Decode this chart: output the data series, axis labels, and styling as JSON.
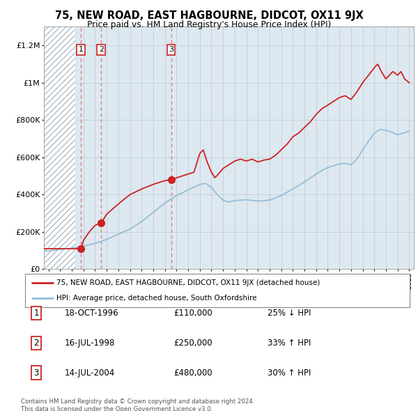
{
  "title": "75, NEW ROAD, EAST HAGBOURNE, DIDCOT, OX11 9JX",
  "subtitle": "Price paid vs. HM Land Registry's House Price Index (HPI)",
  "ylim": [
    0,
    1300000
  ],
  "yticks": [
    0,
    200000,
    400000,
    600000,
    800000,
    1000000,
    1200000
  ],
  "plot_bg_color": "#dde8f0",
  "hatch_color": "#b0bec8",
  "red_color": "#cc2222",
  "blue_color": "#90bcd8",
  "dashed_color": "#e06060",
  "legend_red": "75, NEW ROAD, EAST HAGBOURNE, DIDCOT, OX11 9JX (detached house)",
  "legend_blue": "HPI: Average price, detached house, South Oxfordshire",
  "sale_years": [
    1996.8,
    1998.54,
    2004.53
  ],
  "sale_prices": [
    110000,
    250000,
    480000
  ],
  "table_rows": [
    [
      "1",
      "18-OCT-1996",
      "£110,000",
      "25% ↓ HPI"
    ],
    [
      "2",
      "16-JUL-1998",
      "£250,000",
      "33% ↑ HPI"
    ],
    [
      "3",
      "14-JUL-2004",
      "£480,000",
      "30% ↑ HPI"
    ]
  ],
  "footnote_line1": "Contains HM Land Registry data © Crown copyright and database right 2024.",
  "footnote_line2": "This data is licensed under the Open Government Licence v3.0.",
  "xmin": 1993.6,
  "xmax": 2025.4,
  "hpi_knots_x": [
    1993.5,
    1994,
    1995,
    1996,
    1997,
    1998,
    1999,
    2000,
    2001,
    2002,
    2003,
    2004,
    2004.5,
    2005,
    2006,
    2007,
    2007.5,
    2008,
    2008.5,
    2009,
    2009.5,
    2010,
    2011,
    2012,
    2013,
    2014,
    2015,
    2016,
    2017,
    2017.5,
    2018,
    2018.5,
    2019,
    2019.5,
    2020,
    2020.5,
    2021,
    2021.5,
    2022,
    2022.5,
    2023,
    2023.5,
    2024,
    2024.5,
    2025
  ],
  "hpi_knots_y": [
    95000,
    98000,
    105000,
    113000,
    123000,
    138000,
    160000,
    188000,
    215000,
    255000,
    305000,
    355000,
    375000,
    395000,
    425000,
    455000,
    460000,
    440000,
    400000,
    370000,
    360000,
    368000,
    372000,
    365000,
    370000,
    395000,
    430000,
    468000,
    510000,
    530000,
    545000,
    555000,
    565000,
    568000,
    560000,
    590000,
    640000,
    685000,
    730000,
    750000,
    745000,
    735000,
    720000,
    730000,
    740000
  ],
  "red_knots_x": [
    1993.5,
    1994,
    1995,
    1996,
    1996.8,
    1997,
    1997.5,
    1998,
    1998.54,
    1999,
    2000,
    2001,
    2002,
    2003,
    2004,
    2004.53,
    2005,
    2005.5,
    2006,
    2006.5,
    2007,
    2007.3,
    2007.6,
    2008,
    2008.3,
    2008.6,
    2009,
    2009.5,
    2010,
    2010.5,
    2011,
    2011.5,
    2012,
    2012.5,
    2013,
    2013.5,
    2014,
    2014.5,
    2015,
    2015.5,
    2016,
    2016.5,
    2017,
    2017.5,
    2018,
    2018.5,
    2019,
    2019.5,
    2020,
    2020.5,
    2021,
    2021.5,
    2022,
    2022.3,
    2022.6,
    2023,
    2023.3,
    2023.6,
    2024,
    2024.3,
    2024.6,
    2025
  ],
  "red_knots_y": [
    110000,
    110000,
    110000,
    110000,
    110000,
    155000,
    200000,
    235000,
    250000,
    295000,
    350000,
    400000,
    430000,
    455000,
    475000,
    480000,
    490000,
    500000,
    510000,
    520000,
    620000,
    640000,
    580000,
    520000,
    490000,
    510000,
    540000,
    560000,
    580000,
    590000,
    580000,
    590000,
    575000,
    585000,
    590000,
    610000,
    640000,
    670000,
    710000,
    730000,
    760000,
    790000,
    830000,
    860000,
    880000,
    900000,
    920000,
    930000,
    910000,
    950000,
    1000000,
    1040000,
    1080000,
    1100000,
    1060000,
    1020000,
    1040000,
    1060000,
    1040000,
    1060000,
    1020000,
    1000000
  ]
}
